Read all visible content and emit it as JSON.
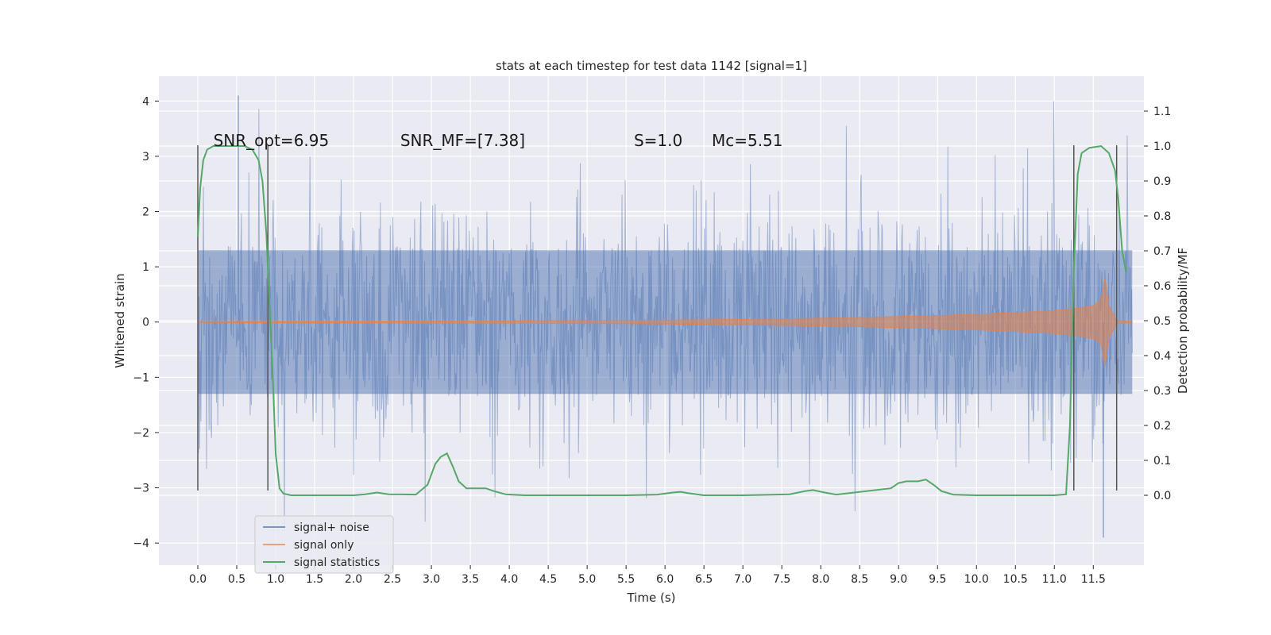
{
  "chart_data": {
    "type": "line",
    "title": "stats at each timestep for test data 1142 [signal=1]",
    "xlabel": "Time (s)",
    "ylabel": "Whitened strain",
    "y2label": "Detection probability/MF",
    "xlim": [
      -0.5,
      12.15
    ],
    "ylim": [
      -4.4,
      4.45
    ],
    "y2lim": [
      -0.2,
      1.2
    ],
    "x_ticks": [
      0.0,
      0.5,
      1.0,
      1.5,
      2.0,
      2.5,
      3.0,
      3.5,
      4.0,
      4.5,
      5.0,
      5.5,
      6.0,
      6.5,
      7.0,
      7.5,
      8.0,
      8.5,
      9.0,
      9.5,
      10.0,
      10.5,
      11.0,
      11.5
    ],
    "x_tick_labels": [
      "0.0",
      "0.5",
      "1.0",
      "1.5",
      "2.0",
      "2.5",
      "3.0",
      "3.5",
      "4.0",
      "4.5",
      "5.0",
      "5.5",
      "6.0",
      "6.5",
      "7.0",
      "7.5",
      "8.0",
      "8.5",
      "9.0",
      "9.5",
      "10.0",
      "10.5",
      "11.0",
      "11.5"
    ],
    "y_ticks": [
      4,
      3,
      2,
      1,
      0,
      -1,
      -2,
      -3,
      -4
    ],
    "y_tick_labels": [
      "4",
      "3",
      "2",
      "1",
      "0",
      "−1",
      "−2",
      "−3",
      "−4"
    ],
    "y2_ticks": [
      1.1,
      1.0,
      0.9,
      0.8,
      0.7,
      0.6,
      0.5,
      0.4,
      0.3,
      0.2,
      0.1,
      0.0
    ],
    "y2_tick_labels": [
      "1.1",
      "1.0",
      "0.9",
      "0.8",
      "0.7",
      "0.6",
      "0.5",
      "0.4",
      "0.3",
      "0.2",
      "0.1",
      "0.0"
    ],
    "grid": true,
    "legend_position": "lower-left",
    "series": [
      {
        "name": "signal+ noise",
        "color": "#4c72b0",
        "axis": "left",
        "x_range": [
          0.0,
          12.0
        ],
        "core_amplitude": 1.3,
        "typical_excursion": [
          -2.5,
          2.7
        ],
        "peak_max": 4.1,
        "peak_min": -3.9
      },
      {
        "name": "signal only",
        "color": "#dd8452",
        "axis": "left",
        "envelope": {
          "x": [
            0.0,
            2.0,
            4.0,
            6.0,
            7.0,
            8.0,
            9.0,
            10.0,
            10.5,
            11.0,
            11.3,
            11.5,
            11.6,
            11.65,
            11.7,
            11.8,
            12.0
          ],
          "amplitude": [
            0.01,
            0.015,
            0.02,
            0.035,
            0.05,
            0.07,
            0.1,
            0.14,
            0.17,
            0.21,
            0.25,
            0.3,
            0.4,
            0.8,
            0.3,
            0.03,
            0.01
          ]
        }
      },
      {
        "name": "signal statistics",
        "color": "#55a868",
        "axis": "right",
        "x": [
          0.0,
          0.03,
          0.07,
          0.12,
          0.2,
          0.3,
          0.5,
          0.6,
          0.7,
          0.78,
          0.83,
          0.88,
          0.92,
          0.97,
          1.0,
          1.05,
          1.1,
          1.2,
          1.6,
          2.0,
          2.15,
          2.3,
          2.45,
          2.8,
          2.95,
          3.05,
          3.12,
          3.2,
          3.28,
          3.35,
          3.45,
          3.6,
          3.7,
          3.8,
          3.95,
          4.2,
          5.0,
          5.5,
          5.9,
          6.1,
          6.2,
          6.3,
          6.5,
          7.0,
          7.6,
          7.8,
          7.9,
          8.05,
          8.2,
          8.9,
          9.0,
          9.1,
          9.25,
          9.35,
          9.45,
          9.55,
          9.7,
          10.0,
          11.0,
          11.15,
          11.2,
          11.25,
          11.3,
          11.35,
          11.45,
          11.6,
          11.7,
          11.78,
          11.82,
          11.87,
          11.92
        ],
        "y": [
          0.74,
          0.88,
          0.96,
          0.99,
          1.0,
          1.0,
          1.0,
          1.0,
          0.99,
          0.96,
          0.9,
          0.75,
          0.55,
          0.3,
          0.12,
          0.02,
          0.005,
          0.0,
          0.0,
          0.0,
          0.003,
          0.008,
          0.003,
          0.002,
          0.03,
          0.09,
          0.11,
          0.12,
          0.08,
          0.04,
          0.02,
          0.02,
          0.02,
          0.012,
          0.003,
          0.0,
          0.0,
          0.0,
          0.002,
          0.008,
          0.01,
          0.006,
          0.0,
          0.0,
          0.003,
          0.012,
          0.015,
          0.008,
          0.002,
          0.02,
          0.035,
          0.04,
          0.04,
          0.045,
          0.03,
          0.012,
          0.002,
          0.0,
          0.0,
          0.003,
          0.2,
          0.65,
          0.92,
          0.98,
          0.995,
          1.0,
          0.98,
          0.93,
          0.85,
          0.7,
          0.64
        ]
      }
    ],
    "vlines": {
      "color": "#555555",
      "x": [
        0.0,
        0.9,
        11.25,
        11.8
      ],
      "y_range": [
        -3.05,
        3.2
      ]
    },
    "annotations": [
      {
        "text": "SNR_opt=6.95",
        "x": 0.2
      },
      {
        "text": "SNR_MF=[7.38]",
        "x": 2.6
      },
      {
        "text": "S=1.0",
        "x": 5.6
      },
      {
        "text": "Mc=5.51",
        "x": 6.6
      }
    ],
    "annotation_y": 3.25
  }
}
